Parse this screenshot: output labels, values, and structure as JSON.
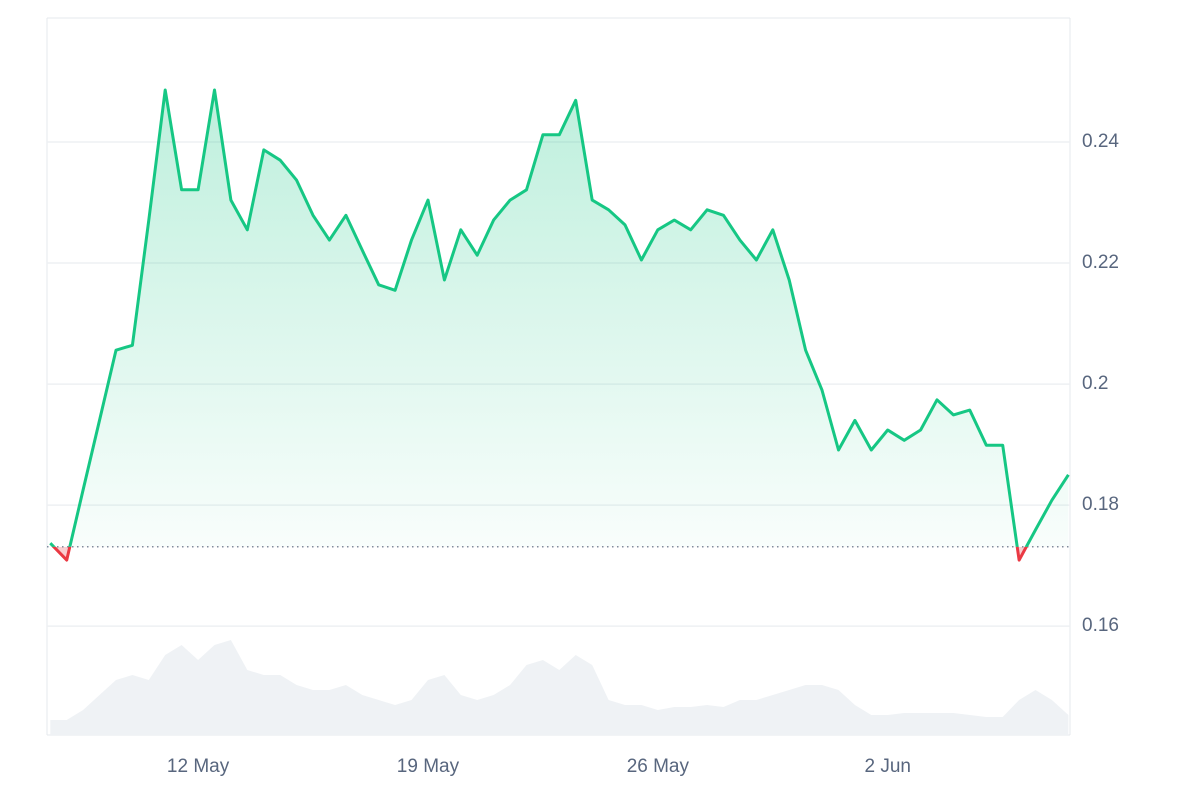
{
  "chart_data": {
    "type": "line",
    "x": [
      7.5,
      8,
      8.5,
      9,
      9.5,
      10,
      10.5,
      11,
      11.5,
      12,
      12.5,
      13,
      13.5,
      14,
      14.5,
      15,
      15.5,
      16,
      16.5,
      17,
      17.5,
      18,
      18.5,
      19,
      19.5,
      20,
      20.5,
      21,
      21.5,
      22,
      22.5,
      23,
      23.5,
      24,
      24.5,
      25,
      25.5,
      26,
      26.5,
      27,
      27.5,
      28,
      28.5,
      29,
      29.5,
      30,
      30.5,
      31,
      31.5,
      32,
      32.5,
      33,
      33.5,
      34,
      34.5,
      35,
      35.5,
      36,
      36.5,
      37,
      37.5,
      38,
      38.5
    ],
    "series": [
      {
        "name": "Price",
        "color": "#16c784",
        "values": [
          0.1737,
          0.1709,
          0.1825,
          0.194,
          0.2056,
          0.2064,
          0.2271,
          0.2486,
          0.2321,
          0.2321,
          0.2486,
          0.2304,
          0.2255,
          0.2387,
          0.237,
          0.2337,
          0.2279,
          0.2238,
          0.2279,
          0.2221,
          0.2164,
          0.2155,
          0.2238,
          0.2304,
          0.2172,
          0.2255,
          0.2213,
          0.2271,
          0.2304,
          0.2321,
          0.2412,
          0.2412,
          0.2469,
          0.2304,
          0.2288,
          0.2263,
          0.2205,
          0.2255,
          0.2271,
          0.2255,
          0.2288,
          0.2279,
          0.2238,
          0.2205,
          0.2255,
          0.2172,
          0.2056,
          0.199,
          0.1891,
          0.194,
          0.1891,
          0.1924,
          0.1907,
          0.1924,
          0.1974,
          0.1949,
          0.1957,
          0.1899,
          0.1899,
          0.1709,
          0.1759,
          0.1808,
          0.185
        ]
      },
      {
        "name": "Volume",
        "color": "#eff2f5",
        "axis": "y2",
        "values": [
          15,
          15,
          25,
          40,
          55,
          60,
          55,
          80,
          90,
          75,
          90,
          95,
          65,
          60,
          60,
          50,
          45,
          45,
          50,
          40,
          35,
          30,
          35,
          55,
          60,
          40,
          35,
          40,
          50,
          70,
          75,
          65,
          80,
          70,
          35,
          30,
          30,
          25,
          28,
          28,
          30,
          28,
          35,
          35,
          40,
          45,
          50,
          50,
          45,
          30,
          20,
          20,
          22,
          22,
          22,
          22,
          20,
          18,
          18,
          35,
          45,
          35,
          20
        ]
      }
    ],
    "baseline": 0.1731,
    "down_color": "#ea3943",
    "xlim": [
      7.4,
      38.55
    ],
    "xticks": [
      {
        "value": 12,
        "label": "12 May"
      },
      {
        "value": 19,
        "label": "19 May"
      },
      {
        "value": 26,
        "label": "26 May"
      },
      {
        "value": 33,
        "label": "2 Jun"
      }
    ],
    "ylim": [
      0.142,
      0.2605
    ],
    "yticks": [
      0.16,
      0.18,
      0.2,
      0.22,
      0.24
    ],
    "y2lim": [
      0,
      120
    ],
    "grid": true
  }
}
